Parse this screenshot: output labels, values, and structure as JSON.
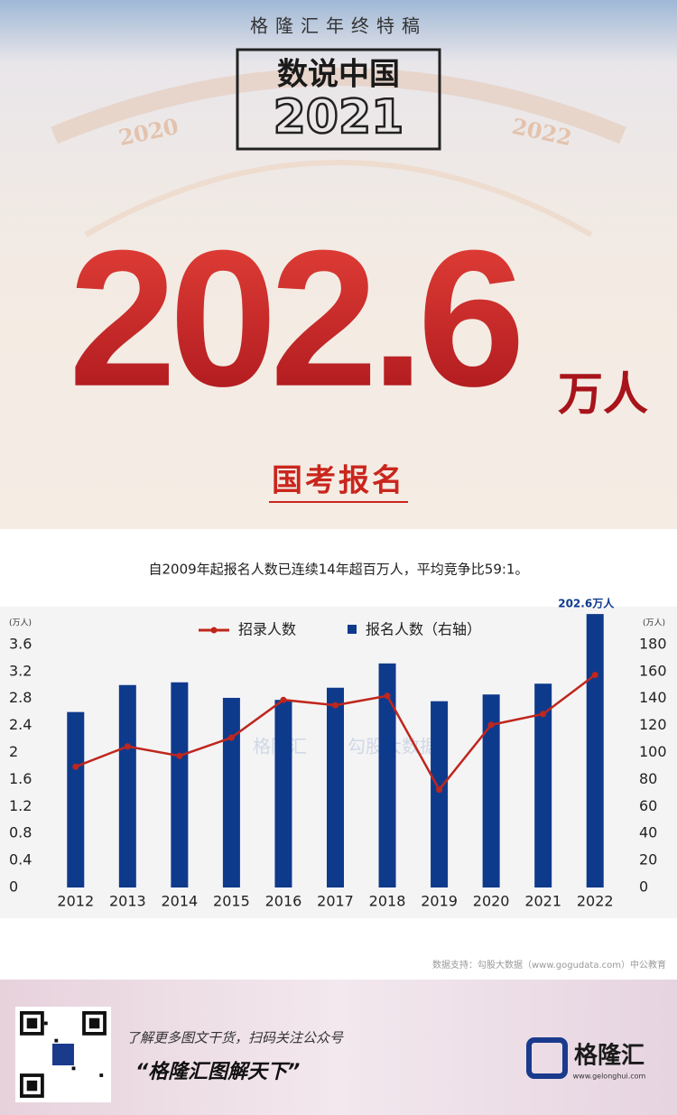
{
  "header": {
    "tag": "格隆汇年终特稿",
    "title": "数说中国",
    "year": "2021",
    "dial_left": "2020",
    "dial_right": "2022",
    "big_number": "202.6",
    "big_unit": "万人",
    "topic": "国考报名"
  },
  "chart_data": {
    "type": "bar",
    "subtitle": "自2009年起报名人数已连续14年超百万人，平均竞争比59:1。",
    "y_unit": "(万人)",
    "y2_unit": "(万人)",
    "categories": [
      "2012",
      "2013",
      "2014",
      "2015",
      "2016",
      "2017",
      "2018",
      "2019",
      "2020",
      "2021",
      "2022"
    ],
    "series": [
      {
        "name": "招录人数",
        "type": "line",
        "color": "#c0261c",
        "values": [
          1.79,
          2.09,
          1.95,
          2.22,
          2.78,
          2.7,
          2.84,
          1.45,
          2.41,
          2.57,
          3.15
        ]
      },
      {
        "name": "报名人数（右轴）",
        "type": "bar",
        "axis": "y2",
        "color": "#0e3a8c",
        "values": [
          130,
          150,
          152,
          140.5,
          139,
          148,
          166,
          138,
          143,
          151,
          202.6
        ],
        "value_labels": [
          null,
          null,
          null,
          null,
          null,
          null,
          null,
          null,
          null,
          null,
          "202.6万人"
        ]
      }
    ],
    "ylim": [
      0,
      4
    ],
    "yticks": [
      0,
      0.4,
      0.8,
      1.2,
      1.6,
      2,
      2.4,
      2.8,
      3.2,
      3.6
    ],
    "y2lim": [
      0,
      200
    ],
    "y2ticks": [
      0,
      20,
      40,
      60,
      80,
      100,
      120,
      140,
      160,
      180
    ],
    "watermarks": [
      "格隆汇",
      "勾股大数据"
    ],
    "source": "数据支持：勾股大数据（www.gogudata.com）中公教育"
  },
  "footer": {
    "prompt": "了解更多图文干货，扫码关注公众号",
    "account": "“格隆汇图解天下”",
    "logo": "格隆汇",
    "site": "www.gelonghui.com"
  }
}
